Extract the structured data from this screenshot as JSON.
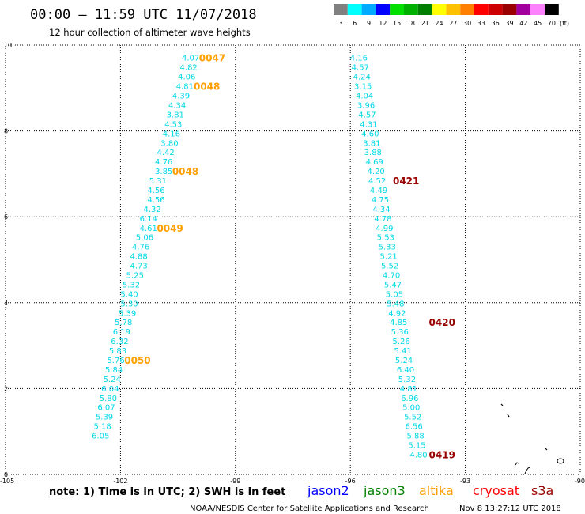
{
  "header": {
    "title": "00:00 – 11:59 UTC 11/07/2018",
    "subtitle": "12 hour collection of altimeter wave heights"
  },
  "legend_scale": {
    "labels": [
      "3",
      "6",
      "9",
      "12",
      "15",
      "18",
      "21",
      "24",
      "27",
      "30",
      "33",
      "36",
      "39",
      "42",
      "45",
      "70"
    ],
    "unit": "(ft)",
    "colors": [
      "#808080",
      "#00ffff",
      "#00aaff",
      "#0000ff",
      "#00e000",
      "#00b000",
      "#008000",
      "#ffff00",
      "#ffc000",
      "#ff8000",
      "#ff0000",
      "#cc0000",
      "#990000",
      "#a000a0",
      "#ff80ff",
      "#000000"
    ]
  },
  "footer": {
    "note": "note: 1) Time is in UTC; 2) SWH is in feet",
    "credit": "NOAA/NESDIS Center for Satellite Applications and Research",
    "timestamp": "Nov  8 13:27:12 UTC 2018",
    "satellites": [
      {
        "name": "jason2",
        "color": "#0000ff"
      },
      {
        "name": "jason3",
        "color": "#008000"
      },
      {
        "name": "altika",
        "color": "#ffa000"
      },
      {
        "name": "cryosat",
        "color": "#ff0000"
      },
      {
        "name": "s3a",
        "color": "#990000"
      }
    ]
  },
  "chart_data": {
    "type": "scatter",
    "xlim": [
      -105,
      -90
    ],
    "ylim": [
      0,
      10
    ],
    "x_ticks": [
      "-105",
      "-102",
      "-99",
      "-96",
      "-93",
      "-90"
    ],
    "y_ticks": [
      "0",
      "2",
      "4",
      "6",
      "8",
      "10"
    ],
    "grid": true,
    "value_color": "#00d8e8",
    "series": [
      {
        "color": "#ffa000",
        "values": [
          {
            "x": -100.17,
            "y": 9.71,
            "label": "4.07"
          },
          {
            "x": -100.22,
            "y": 9.49,
            "label": "4.82"
          },
          {
            "x": -100.27,
            "y": 9.27,
            "label": "4.06"
          },
          {
            "x": -100.32,
            "y": 9.05,
            "label": "4.81"
          },
          {
            "x": -100.42,
            "y": 8.83,
            "label": "4.39"
          },
          {
            "x": -100.52,
            "y": 8.61,
            "label": "4.34"
          },
          {
            "x": -100.57,
            "y": 8.39,
            "label": "3.81"
          },
          {
            "x": -100.62,
            "y": 8.17,
            "label": "4.53"
          },
          {
            "x": -100.67,
            "y": 7.95,
            "label": "4.16"
          },
          {
            "x": -100.72,
            "y": 7.73,
            "label": "3.80"
          },
          {
            "x": -100.82,
            "y": 7.51,
            "label": "4.42"
          },
          {
            "x": -100.87,
            "y": 7.29,
            "label": "4.76"
          },
          {
            "x": -100.87,
            "y": 7.07,
            "label": "3.85"
          },
          {
            "x": -101.02,
            "y": 6.85,
            "label": "5.31"
          },
          {
            "x": -101.07,
            "y": 6.63,
            "label": "4.56"
          },
          {
            "x": -101.07,
            "y": 6.41,
            "label": "4.56"
          },
          {
            "x": -101.17,
            "y": 6.19,
            "label": "4.32"
          },
          {
            "x": -101.27,
            "y": 5.97,
            "label": "6.14"
          },
          {
            "x": -101.27,
            "y": 5.75,
            "label": "4.61"
          },
          {
            "x": -101.37,
            "y": 5.53,
            "label": "5.06"
          },
          {
            "x": -101.47,
            "y": 5.31,
            "label": "4.76"
          },
          {
            "x": -101.52,
            "y": 5.09,
            "label": "4.88"
          },
          {
            "x": -101.52,
            "y": 4.87,
            "label": "4.73"
          },
          {
            "x": -101.62,
            "y": 4.65,
            "label": "5.25"
          },
          {
            "x": -101.72,
            "y": 4.43,
            "label": "5.32"
          },
          {
            "x": -101.77,
            "y": 4.21,
            "label": "5.40"
          },
          {
            "x": -101.77,
            "y": 3.99,
            "label": "5.30"
          },
          {
            "x": -101.82,
            "y": 3.77,
            "label": "5.39"
          },
          {
            "x": -101.92,
            "y": 3.55,
            "label": "5.78"
          },
          {
            "x": -101.97,
            "y": 3.33,
            "label": "6.19"
          },
          {
            "x": -102.02,
            "y": 3.11,
            "label": "6.32"
          },
          {
            "x": -102.07,
            "y": 2.89,
            "label": "5.83"
          },
          {
            "x": -102.12,
            "y": 2.67,
            "label": "5.76"
          },
          {
            "x": -102.17,
            "y": 2.45,
            "label": "5.84"
          },
          {
            "x": -102.22,
            "y": 2.23,
            "label": "5.24"
          },
          {
            "x": -102.27,
            "y": 2.01,
            "label": "6.04"
          },
          {
            "x": -102.32,
            "y": 1.79,
            "label": "5.80"
          },
          {
            "x": -102.37,
            "y": 1.57,
            "label": "6.07"
          },
          {
            "x": -102.42,
            "y": 1.35,
            "label": "5.39"
          },
          {
            "x": -102.47,
            "y": 1.13,
            "label": "5.18"
          },
          {
            "x": -102.52,
            "y": 0.91,
            "label": "6.05"
          }
        ]
      },
      {
        "color": "#990000",
        "values": [
          {
            "x": -95.78,
            "y": 9.71,
            "label": "4.16"
          },
          {
            "x": -95.74,
            "y": 9.49,
            "label": "4.57"
          },
          {
            "x": -95.7,
            "y": 9.27,
            "label": "4.24"
          },
          {
            "x": -95.67,
            "y": 9.05,
            "label": "3.15"
          },
          {
            "x": -95.63,
            "y": 8.83,
            "label": "4.04"
          },
          {
            "x": -95.59,
            "y": 8.61,
            "label": "3.96"
          },
          {
            "x": -95.56,
            "y": 8.39,
            "label": "4.57"
          },
          {
            "x": -95.52,
            "y": 8.17,
            "label": "4.31"
          },
          {
            "x": -95.48,
            "y": 7.95,
            "label": "4.60"
          },
          {
            "x": -95.44,
            "y": 7.73,
            "label": "3.81"
          },
          {
            "x": -95.41,
            "y": 7.51,
            "label": "3.88"
          },
          {
            "x": -95.37,
            "y": 7.29,
            "label": "4.69"
          },
          {
            "x": -95.33,
            "y": 7.07,
            "label": "4.20"
          },
          {
            "x": -95.3,
            "y": 6.85,
            "label": "4.52"
          },
          {
            "x": -95.26,
            "y": 6.63,
            "label": "4.49"
          },
          {
            "x": -95.22,
            "y": 6.41,
            "label": "4.75"
          },
          {
            "x": -95.19,
            "y": 6.19,
            "label": "4.34"
          },
          {
            "x": -95.15,
            "y": 5.97,
            "label": "4.78"
          },
          {
            "x": -95.11,
            "y": 5.75,
            "label": "4.99"
          },
          {
            "x": -95.08,
            "y": 5.53,
            "label": "5.53"
          },
          {
            "x": -95.04,
            "y": 5.31,
            "label": "5.33"
          },
          {
            "x": -95.0,
            "y": 5.09,
            "label": "5.21"
          },
          {
            "x": -94.97,
            "y": 4.87,
            "label": "5.52"
          },
          {
            "x": -94.93,
            "y": 4.65,
            "label": "4.70"
          },
          {
            "x": -94.89,
            "y": 4.43,
            "label": "5.47"
          },
          {
            "x": -94.85,
            "y": 4.21,
            "label": "5.05"
          },
          {
            "x": -94.82,
            "y": 3.99,
            "label": "5.48"
          },
          {
            "x": -94.78,
            "y": 3.77,
            "label": "4.92"
          },
          {
            "x": -94.74,
            "y": 3.55,
            "label": "4.85"
          },
          {
            "x": -94.71,
            "y": 3.33,
            "label": "5.36"
          },
          {
            "x": -94.67,
            "y": 3.11,
            "label": "5.26"
          },
          {
            "x": -94.63,
            "y": 2.89,
            "label": "5.41"
          },
          {
            "x": -94.6,
            "y": 2.67,
            "label": "5.24"
          },
          {
            "x": -94.56,
            "y": 2.45,
            "label": "6.40"
          },
          {
            "x": -94.52,
            "y": 2.23,
            "label": "5.32"
          },
          {
            "x": -94.48,
            "y": 2.01,
            "label": "4.81"
          },
          {
            "x": -94.45,
            "y": 1.79,
            "label": "6.96"
          },
          {
            "x": -94.41,
            "y": 1.57,
            "label": "5.00"
          },
          {
            "x": -94.37,
            "y": 1.35,
            "label": "5.52"
          },
          {
            "x": -94.34,
            "y": 1.13,
            "label": "6.56"
          },
          {
            "x": -94.3,
            "y": 0.91,
            "label": "5.88"
          },
          {
            "x": -94.26,
            "y": 0.69,
            "label": "5.15"
          },
          {
            "x": -94.22,
            "y": 0.47,
            "label": "4.80"
          }
        ]
      }
    ],
    "time_labels": [
      {
        "x": -99.95,
        "y": 9.71,
        "text": "0047",
        "color": "#ffa000"
      },
      {
        "x": -100.09,
        "y": 9.05,
        "text": "0048",
        "color": "#ffa000"
      },
      {
        "x": -100.65,
        "y": 7.07,
        "text": "0048",
        "color": "#ffa000"
      },
      {
        "x": -101.05,
        "y": 5.75,
        "text": "0049",
        "color": "#ffa000"
      },
      {
        "x": -101.9,
        "y": 2.67,
        "text": "0050",
        "color": "#ffa000"
      },
      {
        "x": -94.89,
        "y": 6.85,
        "text": "0421",
        "color": "#990000"
      },
      {
        "x": -93.95,
        "y": 3.55,
        "text": "0420",
        "color": "#990000"
      },
      {
        "x": -93.95,
        "y": 0.47,
        "text": "0419",
        "color": "#990000"
      }
    ]
  }
}
